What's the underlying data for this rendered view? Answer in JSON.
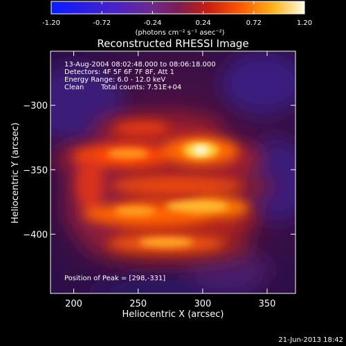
{
  "chart_data": {
    "type": "heatmap",
    "title": "Reconstructed RHESSI Image",
    "xlabel": "Heliocentric X (arcsec)",
    "ylabel": "Heliocentric Y (arcsec)",
    "xlim": [
      182,
      372
    ],
    "ylim": [
      -446,
      -258
    ],
    "x_ticks": [
      200,
      250,
      300,
      350
    ],
    "y_ticks": [
      -300,
      -350,
      -400
    ],
    "colorbar": {
      "range": [
        -1.2,
        1.2
      ],
      "tick_values": [
        -1.2,
        -0.72,
        -0.24,
        0.24,
        0.72,
        1.2
      ],
      "tick_labels": [
        "-1.20",
        "-0.72",
        "-0.24",
        "0.24",
        "0.72",
        "1.20"
      ],
      "unit_label": "(photons cm⁻² s⁻¹ asec⁻²)"
    },
    "annotations": {
      "time": "13-Aug-2004 08:02:48.000 to 08:06:18.000",
      "detectors": "Detectors: 4F 5F 6F 7F 8F, Att 1",
      "energy": "Energy Range: 6.0 - 12.0 keV",
      "clean": "Clean",
      "counts": "Total counts: 7.51E+04",
      "peak": "Position of Peak = [298,-331]"
    },
    "peak": {
      "x": 298,
      "y": -331
    },
    "grid": false
  },
  "footer": {
    "date": "21-Jun-2013 18:42"
  }
}
